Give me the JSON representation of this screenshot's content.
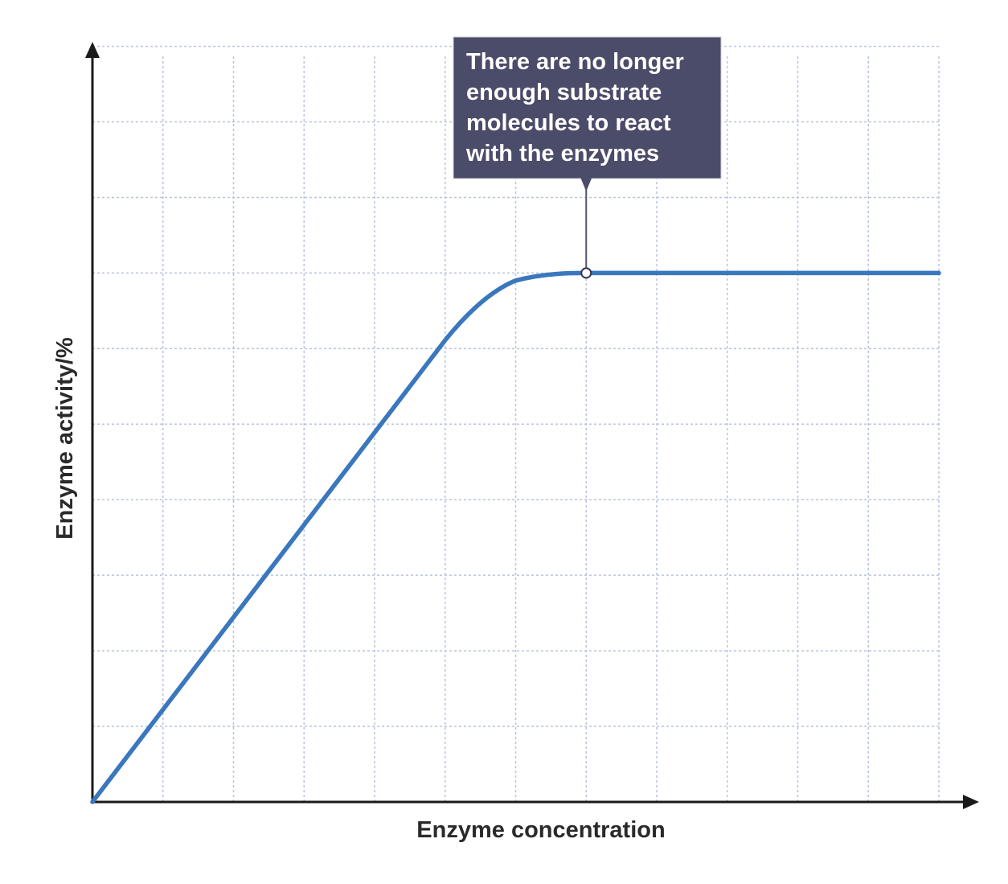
{
  "chart_data": {
    "type": "line",
    "title": "",
    "xlabel": "Enzyme concentration",
    "ylabel": "Enzyme activity/%",
    "grid": true,
    "xlim": [
      0,
      12
    ],
    "ylim": [
      0,
      10.4
    ],
    "series": [
      {
        "name": "Enzyme activity",
        "x": [
          0,
          1,
          2,
          3,
          4,
          5,
          5.5,
          6,
          6.5,
          7,
          12
        ],
        "y": [
          0,
          1.22,
          2.44,
          3.67,
          4.89,
          6.11,
          6.6,
          6.9,
          6.99,
          7.0,
          7.0
        ]
      }
    ],
    "annotation": {
      "text_lines": [
        "There are no longer",
        "enough substrate",
        "molecules to react",
        "with the enzymes"
      ],
      "point": {
        "x": 7,
        "y": 7
      }
    },
    "colors": {
      "line": "#3a77bd",
      "grid": "#b9c3e0",
      "axis": "#1a1a1a",
      "callout_bg": "#4b4b6a"
    }
  }
}
